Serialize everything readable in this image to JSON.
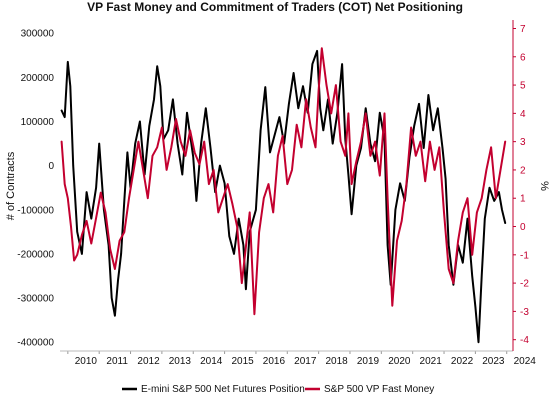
{
  "chart_data": {
    "type": "line",
    "title": "VP Fast Money and Commitment of Traders (COT) Net Positioning",
    "ylabel_left": "# of Contracts",
    "ylabel_right": "%",
    "y_left_lim": [
      -420000,
      330000
    ],
    "y_right_lim": [
      -4.4,
      7.3
    ],
    "x_lim": [
      2009.75,
      2024.2
    ],
    "y_left_ticks": [
      300000,
      200000,
      100000,
      0,
      -100000,
      -200000,
      -300000,
      -400000
    ],
    "y_left_tick_labels": [
      "300000",
      "200000",
      "100000",
      "0",
      "-100000",
      "-200000",
      "-300000",
      "-400000"
    ],
    "y_right_ticks": [
      7,
      6,
      5,
      4,
      3,
      2,
      1,
      0,
      -1,
      -2,
      -3,
      -4
    ],
    "y_right_tick_labels": [
      "7",
      "6",
      "5",
      "4",
      "3",
      "2",
      "1",
      "0",
      "-1",
      "-2",
      "-3",
      "-4"
    ],
    "x_ticks": [
      2010,
      2011,
      2012,
      2013,
      2014,
      2015,
      2016,
      2017,
      2018,
      2019,
      2020,
      2021,
      2022,
      2023,
      2024
    ],
    "x_tick_labels": [
      "2010",
      "2011",
      "2012",
      "2013",
      "2014",
      "2015",
      "2016",
      "2017",
      "2018",
      "2019",
      "2020",
      "2021",
      "2022",
      "2023",
      "2024"
    ],
    "grid": false,
    "legend_position": "bottom",
    "series": [
      {
        "name": "E-mini S&P 500 Net Futures Position",
        "axis": "left",
        "color": "#000000",
        "x": [
          2009.8,
          2009.9,
          2010.0,
          2010.08,
          2010.17,
          2010.3,
          2010.45,
          2010.6,
          2010.75,
          2010.9,
          2011.0,
          2011.15,
          2011.3,
          2011.4,
          2011.5,
          2011.6,
          2011.7,
          2011.8,
          2011.9,
          2012.0,
          2012.15,
          2012.3,
          2012.45,
          2012.6,
          2012.75,
          2012.85,
          2012.95,
          2013.05,
          2013.2,
          2013.35,
          2013.5,
          2013.65,
          2013.8,
          2014.0,
          2014.1,
          2014.25,
          2014.4,
          2014.55,
          2014.7,
          2014.85,
          2015.0,
          2015.15,
          2015.3,
          2015.45,
          2015.6,
          2015.68,
          2015.8,
          2016.0,
          2016.15,
          2016.3,
          2016.45,
          2016.6,
          2016.75,
          2016.9,
          2017.05,
          2017.2,
          2017.35,
          2017.5,
          2017.65,
          2017.8,
          2017.95,
          2018.05,
          2018.15,
          2018.3,
          2018.45,
          2018.6,
          2018.75,
          2018.85,
          2018.95,
          2019.05,
          2019.2,
          2019.35,
          2019.5,
          2019.65,
          2019.8,
          2019.95,
          2020.1,
          2020.2,
          2020.3,
          2020.45,
          2020.6,
          2020.75,
          2020.9,
          2021.05,
          2021.2,
          2021.35,
          2021.5,
          2021.65,
          2021.8,
          2021.95,
          2022.05,
          2022.15,
          2022.3,
          2022.45,
          2022.6,
          2022.75,
          2022.9,
          2023.0,
          2023.1,
          2023.2,
          2023.3,
          2023.45,
          2023.6,
          2023.75,
          2023.85,
          2023.95
        ],
        "y": [
          125000,
          110000,
          235000,
          180000,
          0,
          -150000,
          -200000,
          -60000,
          -120000,
          -50000,
          50000,
          -100000,
          -180000,
          -300000,
          -340000,
          -260000,
          -200000,
          -80000,
          30000,
          -50000,
          50000,
          100000,
          -20000,
          90000,
          150000,
          225000,
          180000,
          60000,
          80000,
          150000,
          50000,
          -20000,
          120000,
          20000,
          -80000,
          50000,
          130000,
          40000,
          -60000,
          0,
          -40000,
          -160000,
          -200000,
          -120000,
          -180000,
          -280000,
          -150000,
          -100000,
          80000,
          178000,
          30000,
          70000,
          110000,
          50000,
          140000,
          210000,
          130000,
          180000,
          120000,
          230000,
          260000,
          130000,
          80000,
          150000,
          50000,
          120000,
          230000,
          60000,
          -20000,
          -110000,
          0,
          40000,
          130000,
          50000,
          10000,
          120000,
          60000,
          -180000,
          -270000,
          -100000,
          -40000,
          -80000,
          20000,
          90000,
          140000,
          40000,
          160000,
          80000,
          130000,
          40000,
          -30000,
          -180000,
          -270000,
          -180000,
          -220000,
          -120000,
          -250000,
          -320000,
          -400000,
          -250000,
          -120000,
          -50000,
          -80000,
          -60000,
          -100000,
          -130000
        ]
      },
      {
        "name": "S&P 500 VP Fast Money",
        "axis": "right",
        "color": "#c3002f",
        "x": [
          2009.8,
          2009.9,
          2010.0,
          2010.1,
          2010.2,
          2010.3,
          2010.45,
          2010.6,
          2010.75,
          2010.9,
          2011.05,
          2011.2,
          2011.35,
          2011.5,
          2011.65,
          2011.8,
          2011.95,
          2012.1,
          2012.25,
          2012.4,
          2012.55,
          2012.7,
          2012.85,
          2013.0,
          2013.15,
          2013.3,
          2013.45,
          2013.6,
          2013.75,
          2013.9,
          2014.05,
          2014.2,
          2014.35,
          2014.5,
          2014.65,
          2014.8,
          2014.95,
          2015.1,
          2015.25,
          2015.4,
          2015.55,
          2015.65,
          2015.8,
          2015.95,
          2016.1,
          2016.25,
          2016.4,
          2016.55,
          2016.7,
          2016.85,
          2017.0,
          2017.15,
          2017.3,
          2017.45,
          2017.6,
          2017.75,
          2017.9,
          2018.0,
          2018.1,
          2018.25,
          2018.4,
          2018.55,
          2018.7,
          2018.85,
          2018.95,
          2019.05,
          2019.2,
          2019.35,
          2019.5,
          2019.65,
          2019.8,
          2019.95,
          2020.1,
          2020.2,
          2020.35,
          2020.5,
          2020.65,
          2020.8,
          2020.95,
          2021.1,
          2021.25,
          2021.4,
          2021.55,
          2021.7,
          2021.85,
          2022.0,
          2022.15,
          2022.3,
          2022.45,
          2022.6,
          2022.75,
          2022.9,
          2023.05,
          2023.2,
          2023.35,
          2023.5,
          2023.65,
          2023.8,
          2023.95
        ],
        "y": [
          3.0,
          1.5,
          1.0,
          0.0,
          -1.2,
          -1.0,
          -0.3,
          0.2,
          -0.6,
          0.3,
          1.2,
          0.5,
          -0.8,
          -1.5,
          -0.5,
          -0.2,
          1.0,
          2.0,
          3.0,
          2.0,
          1.0,
          2.5,
          2.8,
          3.5,
          2.0,
          2.8,
          3.8,
          3.0,
          2.5,
          3.4,
          2.6,
          2.2,
          3.0,
          1.5,
          2.0,
          0.5,
          1.0,
          1.5,
          0.8,
          0.0,
          -2.0,
          -1.0,
          0.5,
          -3.1,
          -0.2,
          1.0,
          1.5,
          0.5,
          2.5,
          3.2,
          1.5,
          2.0,
          3.6,
          2.8,
          4.5,
          3.5,
          2.8,
          4.8,
          6.3,
          5.0,
          4.0,
          5.0,
          3.0,
          2.5,
          4.0,
          1.5,
          2.3,
          3.0,
          4.0,
          2.5,
          3.0,
          1.8,
          4.0,
          1.0,
          -2.8,
          -0.5,
          0.2,
          1.5,
          3.5,
          2.5,
          3.0,
          1.6,
          3.0,
          2.0,
          2.8,
          0.5,
          -1.5,
          -2.0,
          -0.5,
          0.5,
          1.0,
          -1.0,
          0.5,
          1.0,
          2.0,
          2.8,
          1.0,
          2.0,
          3.0
        ]
      }
    ]
  }
}
